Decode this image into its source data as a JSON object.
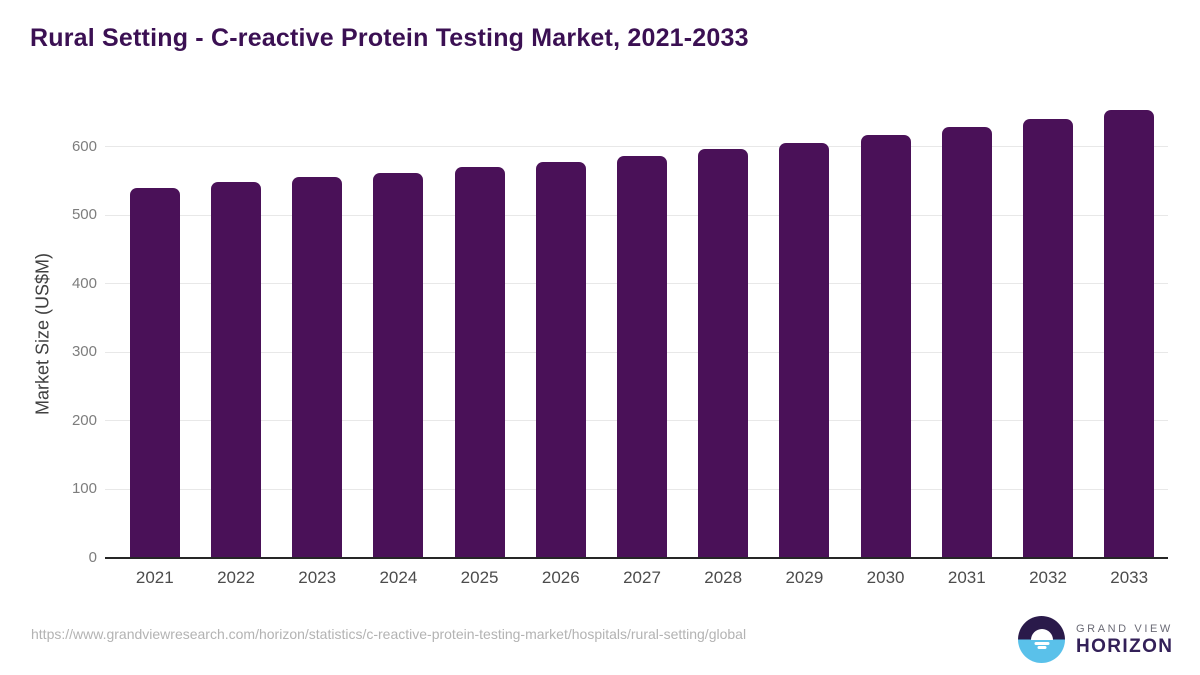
{
  "header": {
    "title": "Rural Setting - C-reactive Protein Testing Market, 2021-2033"
  },
  "chart_data": {
    "type": "bar",
    "title": "Rural Setting - C-reactive Protein Testing Market, 2021-2033",
    "categories": [
      "2021",
      "2022",
      "2023",
      "2024",
      "2025",
      "2026",
      "2027",
      "2028",
      "2029",
      "2030",
      "2031",
      "2032",
      "2033"
    ],
    "values": [
      539,
      548,
      555,
      562,
      570,
      578,
      587,
      596,
      606,
      617,
      628,
      641,
      653
    ],
    "xlabel": "",
    "ylabel": "Market Size (US$M)",
    "ylim": [
      0,
      668
    ],
    "yticks": [
      0,
      100,
      200,
      300,
      400,
      500,
      600
    ],
    "grid": true,
    "legend": "none",
    "bar_color": "#4a1158"
  },
  "footer": {
    "source_url": "https://www.grandviewresearch.com/horizon/statistics/c-reactive-protein-testing-market/hospitals/rural-setting/global",
    "logo_top": "GRAND VIEW",
    "logo_bottom": "HORIZON"
  },
  "colors": {
    "title_text": "#3b1053",
    "bar": "#4a1158",
    "axis_line": "#262626",
    "gridline": "#e8e8e8",
    "y_tick_label": "#7d7d7d",
    "x_tick_label": "#4c4c4c",
    "y_axis_title": "#404040",
    "source_url_text": "#b3b3b3",
    "logo_dark_half": "#2a1a4a",
    "logo_blue_half": "#5ac1ea"
  }
}
